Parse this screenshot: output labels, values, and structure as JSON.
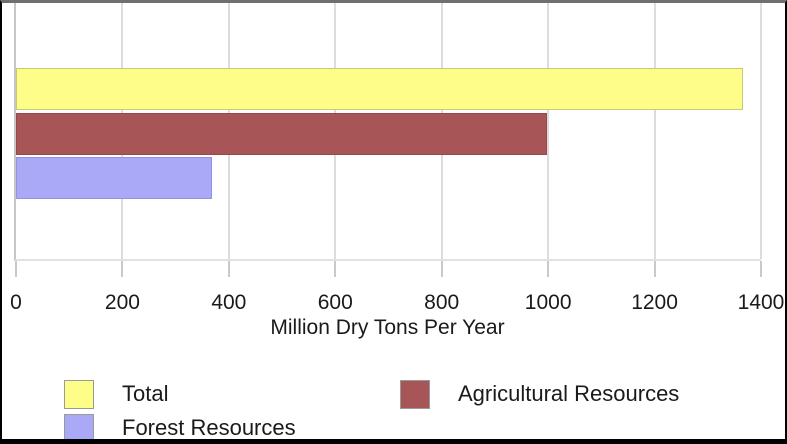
{
  "chart_data": {
    "type": "bar",
    "orientation": "horizontal",
    "title": "",
    "xlabel": "Million Dry Tons Per Year",
    "ylabel": "",
    "xlim": [
      0,
      1400
    ],
    "xticks": [
      0,
      200,
      400,
      600,
      800,
      1000,
      1200,
      1400
    ],
    "grid": true,
    "legend_position": "bottom",
    "series": [
      {
        "name": "Total",
        "value": 1366,
        "color": "#fdfd88",
        "border": "#c9c97a"
      },
      {
        "name": "Agricultural Resources",
        "value": 998,
        "color": "#a85557",
        "border": "#94494b"
      },
      {
        "name": "Forest Resources",
        "value": 368,
        "color": "#a9a9f7",
        "border": "#9494dd"
      }
    ],
    "legend": [
      {
        "label": "Total",
        "color": "#fdfd88"
      },
      {
        "label": "Agricultural Resources",
        "color": "#a85557"
      },
      {
        "label": "Forest Resources",
        "color": "#a9a9f7"
      }
    ]
  },
  "colors": {
    "gridline": "#dcdcdc",
    "axis": "#c6c6c6",
    "text": "#1a1a1a"
  }
}
